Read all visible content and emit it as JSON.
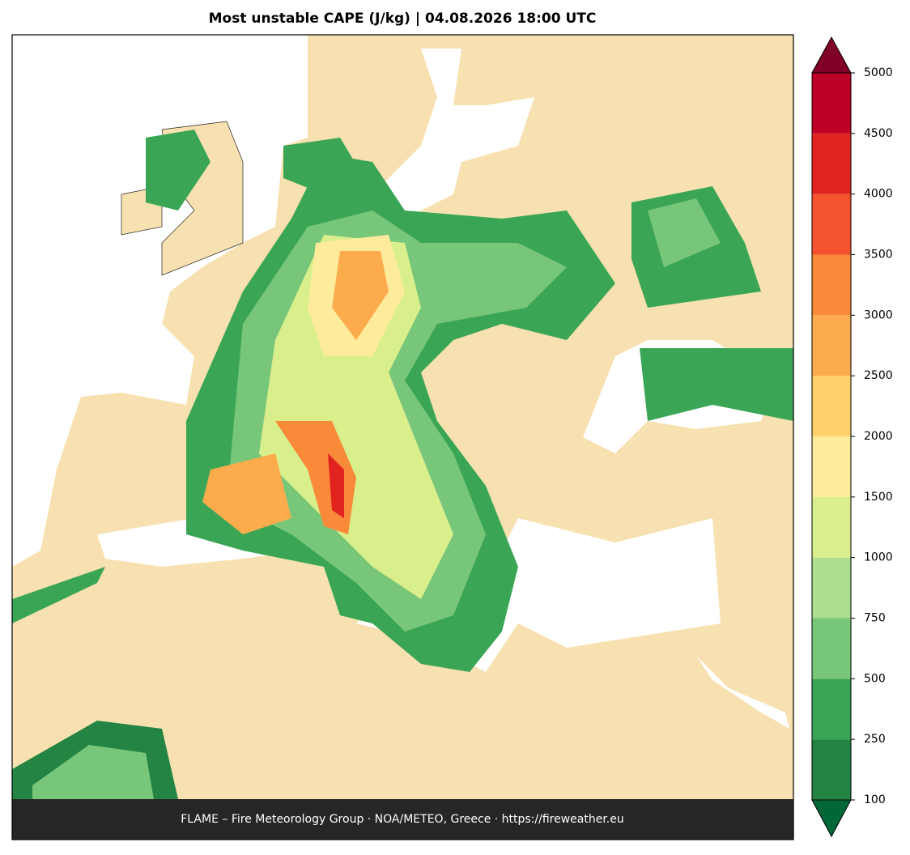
{
  "title": "Most unstable CAPE (J/kg)  |  04.08.2026 18:00 UTC",
  "footer": "FLAME – Fire Meteorology Group · NOA/METEO, Greece · https://fireweather.eu",
  "colorbar": {
    "ticks": [
      100,
      250,
      500,
      750,
      1000,
      1500,
      2000,
      2500,
      3000,
      3500,
      4000,
      4500,
      5000
    ],
    "colors": [
      "#238443",
      "#3aa655",
      "#78c679",
      "#addd8e",
      "#d9ef8b",
      "#feeb9c",
      "#fed16a",
      "#fcab4d",
      "#f98a3a",
      "#f5522f",
      "#e0231f",
      "#bd0026"
    ],
    "under_color": "#006837",
    "over_color": "#800026"
  }
}
